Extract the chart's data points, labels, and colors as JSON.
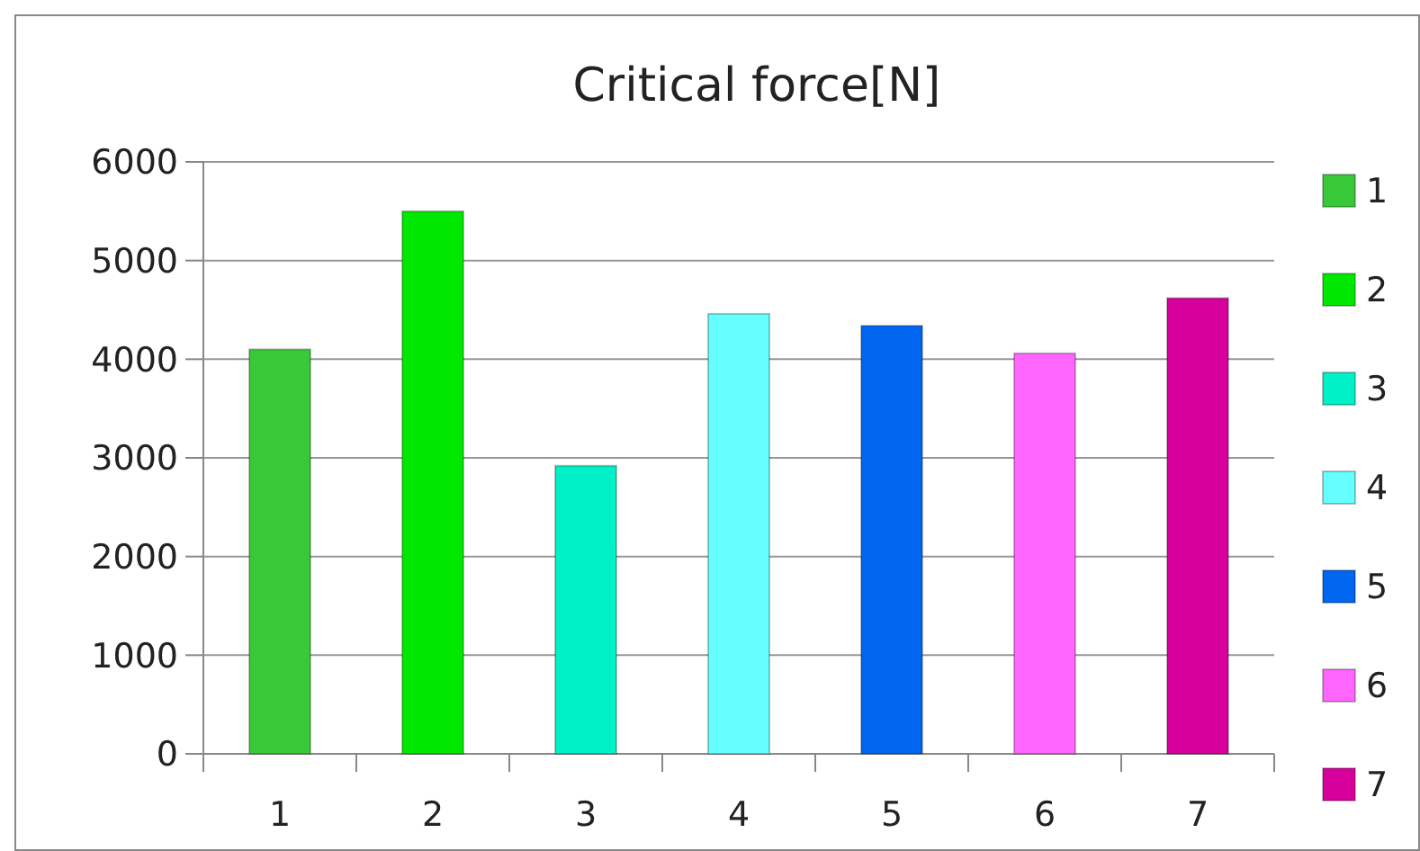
{
  "chart_data": {
    "type": "bar",
    "title": "Critical force[N]",
    "categories": [
      "1",
      "2",
      "3",
      "4",
      "5",
      "6",
      "7"
    ],
    "series": [
      {
        "name": "1",
        "color": "#38c838",
        "values": [
          4100,
          null,
          null,
          null,
          null,
          null,
          null
        ]
      },
      {
        "name": "2",
        "color": "#00e800",
        "values": [
          null,
          5500,
          null,
          null,
          null,
          null,
          null
        ]
      },
      {
        "name": "3",
        "color": "#00f0c8",
        "values": [
          null,
          null,
          2920,
          null,
          null,
          null,
          null
        ]
      },
      {
        "name": "4",
        "color": "#66ffff",
        "values": [
          null,
          null,
          null,
          4460,
          null,
          null,
          null
        ]
      },
      {
        "name": "5",
        "color": "#0066f0",
        "values": [
          null,
          null,
          null,
          null,
          4340,
          null,
          null
        ]
      },
      {
        "name": "6",
        "color": "#ff66ff",
        "values": [
          null,
          null,
          null,
          null,
          null,
          4060,
          null
        ]
      },
      {
        "name": "7",
        "color": "#d8009c",
        "values": [
          null,
          null,
          null,
          null,
          null,
          null,
          4620
        ]
      }
    ],
    "ylim": [
      0,
      6000
    ],
    "yticks": [
      0,
      1000,
      2000,
      3000,
      4000,
      5000,
      6000
    ],
    "grid": "y",
    "legend": "right"
  }
}
